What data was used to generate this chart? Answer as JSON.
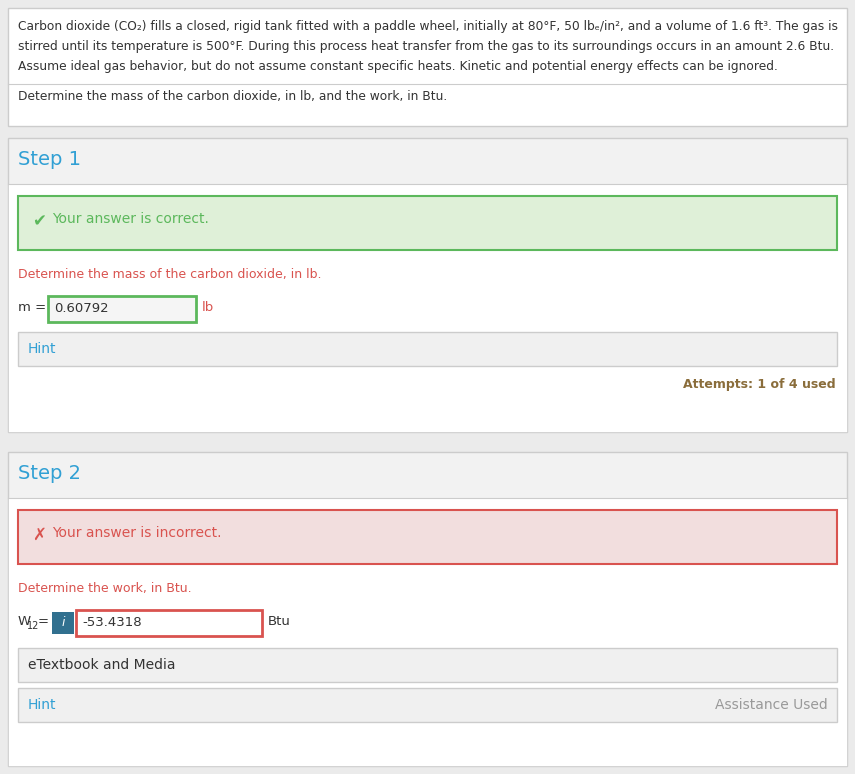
{
  "bg_color": "#ebebeb",
  "white": "#ffffff",
  "panel_bg": "#f2f2f2",
  "border_color": "#cccccc",
  "border_light": "#dddddd",
  "problem_line1": "Carbon dioxide (CO₂) fills a closed, rigid tank fitted with a paddle wheel, initially at 80°F, 50 lbₑ/in², and a volume of 1.6 ft³. The gas is",
  "problem_line2": "stirred until its temperature is 500°F. During this process heat transfer from the gas to its surroundings occurs in an amount 2.6 Btu.",
  "problem_line3": "Assume ideal gas behavior, but do not assume constant specific heats. Kinetic and potential energy effects can be ignored.",
  "determine_text": "Determine the mass of the carbon dioxide, in lb, and the work, in Btu.",
  "step1_label": "Step 1",
  "step1_correct_text": "Your answer is correct.",
  "step1_correct_bg": "#dff0d8",
  "step1_correct_border": "#5cb85c",
  "step1_determine_text": "Determine the mass of the carbon dioxide, in lb.",
  "step1_m_label": "m = ",
  "step1_m_value": "0.60792",
  "step1_m_unit": "lb",
  "step1_input_bg": "#f5f5f5",
  "step1_input_border": "#5cb85c",
  "hint1_text": "Hint",
  "attempts_text": "Attempts: 1 of 4 used",
  "step2_label": "Step 2",
  "step2_incorrect_text": "Your answer is incorrect.",
  "step2_incorrect_bg": "#f2dede",
  "step2_incorrect_border": "#d9534f",
  "step2_determine_text": "Determine the work, in Btu.",
  "step2_w_value": "-53.4318",
  "step2_w_unit": "Btu",
  "step2_input_bg": "#ffffff",
  "step2_input_border": "#d9534f",
  "step2_info_bg": "#31708f",
  "etextbook_text": "eTextbook and Media",
  "hint2_text": "Hint",
  "assistance_text": "Assistance Used",
  "text_dark": "#333333",
  "text_orange": "#d9534f",
  "step_title_color": "#31a0d4",
  "hint_color": "#31a0d4",
  "correct_color": "#5cb85c",
  "incorrect_color": "#d9534f",
  "attempts_color": "#8a6d3b",
  "link_color": "#c0392b",
  "gray_text": "#999999"
}
